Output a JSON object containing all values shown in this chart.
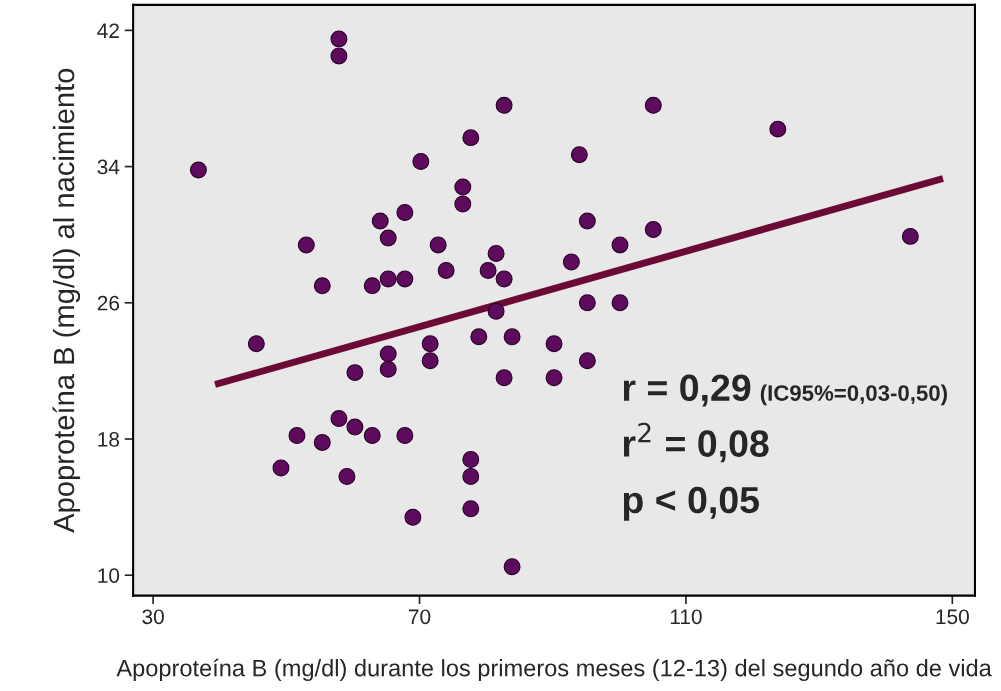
{
  "chart_data": {
    "type": "scatter",
    "xlabel": "Apoproteína B (mg/dl) durante los primeros meses (12-13) del segundo año de vida",
    "ylabel": "Apoproteína B (mg/dl) al nacimiento",
    "xlim": [
      27,
      153.4
    ],
    "ylim": [
      8.8,
      43.5
    ],
    "xticks": [
      30,
      70,
      110,
      150
    ],
    "yticks": [
      10,
      18,
      26,
      34,
      42
    ],
    "grid": false,
    "legend": false,
    "marker": "circle",
    "series": [
      {
        "color": "#5e0b5e",
        "x": [
          36.8,
          57.9,
          57.9,
          53.0,
          55.4,
          45.5,
          60.3,
          49.2,
          51.6,
          55.4,
          57.9,
          59.1,
          60.3,
          62.9,
          62.9,
          64.1,
          65.3,
          65.3,
          65.3,
          65.3,
          67.8,
          67.8,
          67.8,
          69.0,
          70.2,
          71.6,
          71.6,
          72.8,
          74.0,
          76.5,
          76.5,
          77.7,
          77.7,
          77.7,
          77.7,
          78.9,
          80.3,
          81.5,
          81.5,
          82.7,
          82.7,
          82.7,
          83.9,
          83.9,
          90.2,
          90.2,
          92.8,
          94.0,
          95.2,
          95.2,
          95.2,
          100.1,
          100.1,
          105.1,
          105.1,
          123.8,
          143.7
        ],
        "values": [
          33.8,
          41.5,
          40.5,
          29.4,
          27.0,
          23.6,
          21.9,
          16.3,
          18.2,
          17.8,
          19.2,
          15.8,
          18.7,
          18.2,
          27.0,
          30.8,
          29.8,
          27.4,
          23.0,
          22.1,
          31.3,
          27.4,
          18.2,
          13.4,
          34.3,
          23.6,
          22.6,
          29.4,
          27.9,
          32.8,
          31.8,
          35.7,
          16.8,
          15.8,
          13.9,
          24.0,
          27.9,
          28.9,
          25.5,
          37.6,
          27.4,
          21.6,
          24.0,
          10.5,
          23.6,
          21.6,
          28.4,
          34.7,
          30.8,
          26.0,
          22.6,
          29.4,
          26.0,
          37.6,
          30.3,
          36.2,
          29.9
        ]
      },
      {
        "type": "line",
        "color": "#6b0a35",
        "line_style": "solid",
        "marker": "none",
        "x": [
          39.3,
          148.6
        ],
        "values": [
          21.2,
          33.3
        ]
      }
    ],
    "annotations": [
      "r = 0,29",
      "(IC95%=0,03-0,50)",
      "r$^{2}$ = 0,08",
      "p < 0,05"
    ]
  }
}
